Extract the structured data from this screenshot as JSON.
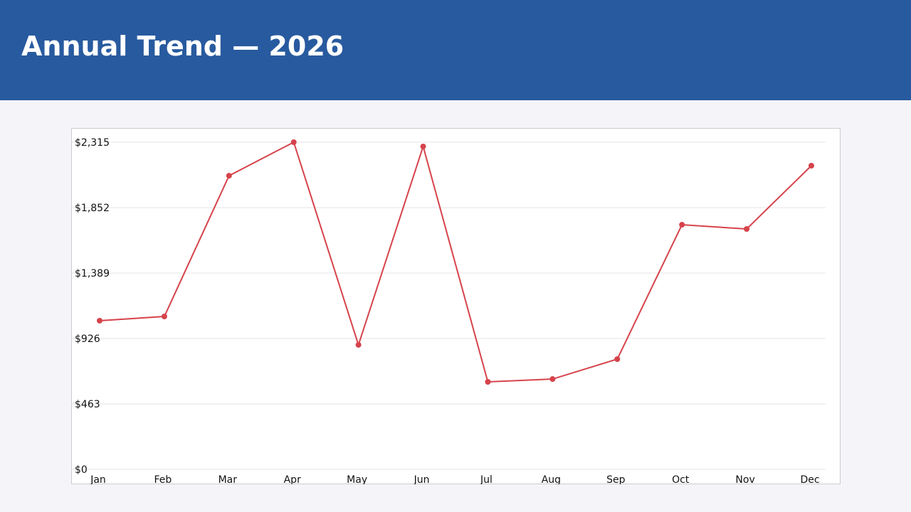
{
  "chart_data": {
    "type": "line",
    "title": "Annual Trend — 2026",
    "categories": [
      "Jan",
      "Feb",
      "Mar",
      "Apr",
      "May",
      "Jun",
      "Jul",
      "Aug",
      "Sep",
      "Oct",
      "Nov",
      "Dec"
    ],
    "series": [
      {
        "color": "#d6434b",
        "values": [
          1052,
          1082,
          2078,
          2315,
          881,
          2285,
          619,
          639,
          780,
          1731,
          1701,
          2149
        ]
      }
    ],
    "ylim": [
      0,
      2315
    ],
    "yticks": [
      {
        "value": 0,
        "label": "$0"
      },
      {
        "value": 463,
        "label": "$463"
      },
      {
        "value": 926,
        "label": "$926"
      },
      {
        "value": 1389,
        "label": "$1,389"
      },
      {
        "value": 1852,
        "label": "$1,852"
      },
      {
        "value": 2315,
        "label": "$2,315"
      }
    ],
    "grid": true
  }
}
